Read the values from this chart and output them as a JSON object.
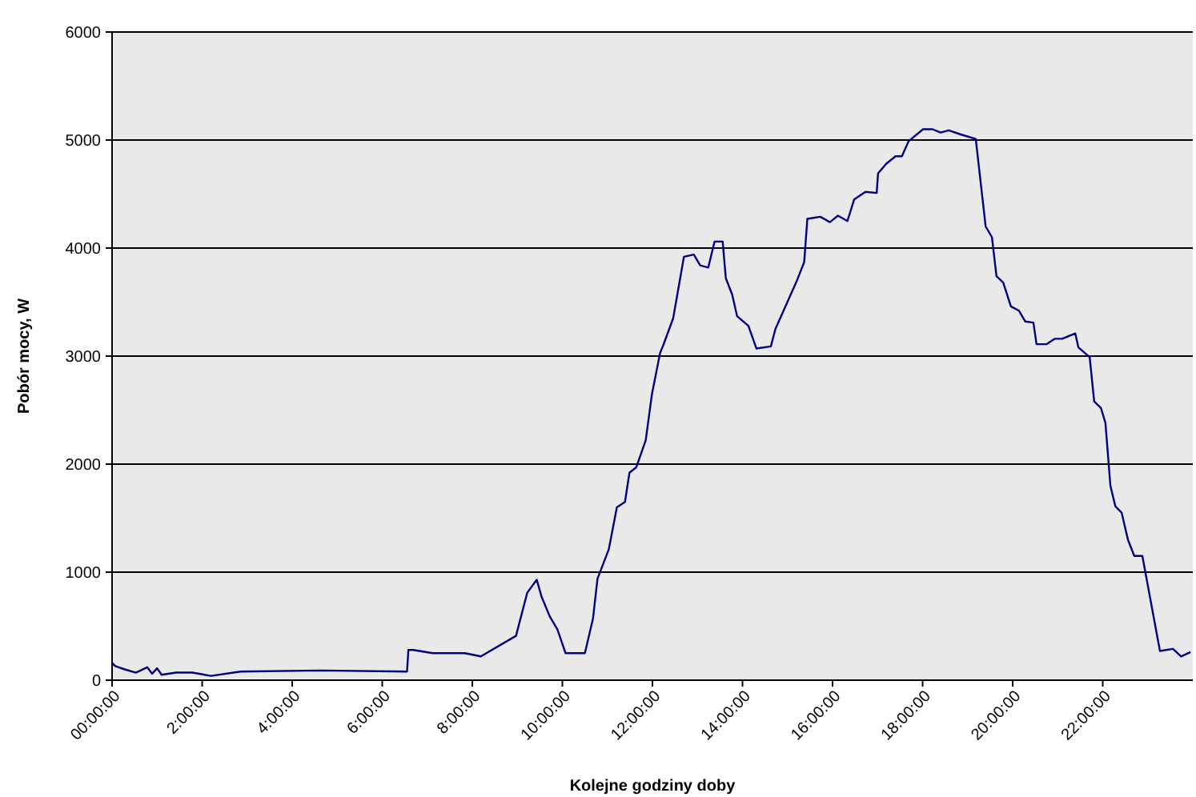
{
  "chart_data": {
    "type": "line",
    "xlabel": "Kolejne godziny doby",
    "ylabel": "Pobór mocy, W",
    "xlim": [
      0,
      24
    ],
    "xticks": [
      {
        "value": 0,
        "label": "00:00:00"
      },
      {
        "value": 2,
        "label": "2:00:00"
      },
      {
        "value": 4,
        "label": "4:00:00"
      },
      {
        "value": 6,
        "label": "6:00:00"
      },
      {
        "value": 8,
        "label": "8:00:00"
      },
      {
        "value": 10,
        "label": "10:00:00"
      },
      {
        "value": 12,
        "label": "12:00:00"
      },
      {
        "value": 14,
        "label": "14:00:00"
      },
      {
        "value": 16,
        "label": "16:00:00"
      },
      {
        "value": 18,
        "label": "18:00:00"
      },
      {
        "value": 20,
        "label": "20:00:00"
      },
      {
        "value": 22,
        "label": "22:00:00"
      }
    ],
    "ylim": [
      0,
      6000
    ],
    "yticks": [
      0,
      1000,
      2000,
      3000,
      4000,
      5000,
      6000
    ],
    "grid": "y",
    "marker": "none",
    "line_style": "solid",
    "series": [
      {
        "color": "#000080",
        "x": [
          0,
          0.07,
          0.28,
          0.53,
          0.78,
          0.89,
          1.0,
          1.1,
          1.42,
          1.78,
          2.2,
          2.85,
          4.63,
          6.55,
          6.58,
          6.69,
          7.12,
          7.83,
          8.19,
          8.97,
          9.22,
          9.43,
          9.54,
          9.72,
          9.89,
          10.07,
          10.5,
          10.68,
          10.78,
          11.03,
          11.21,
          11.39,
          11.49,
          11.64,
          11.85,
          11.99,
          12.17,
          12.24,
          12.46,
          12.7,
          12.92,
          13.06,
          13.24,
          13.38,
          13.56,
          13.63,
          13.77,
          13.88,
          14.13,
          14.31,
          14.63,
          14.73,
          15.05,
          15.2,
          15.37,
          15.44,
          15.73,
          15.94,
          16.12,
          16.33,
          16.48,
          16.73,
          16.98,
          17.01,
          17.19,
          17.4,
          17.54,
          17.69,
          18.01,
          18.22,
          18.4,
          18.58,
          18.86,
          19.18,
          19.4,
          19.54,
          19.64,
          19.79,
          19.96,
          20.14,
          20.28,
          20.46,
          20.53,
          20.75,
          20.93,
          21.1,
          21.39,
          21.46,
          21.71,
          21.81,
          21.96,
          22.06,
          22.17,
          22.28,
          22.42,
          22.56,
          22.7,
          22.88,
          23.27,
          23.56,
          23.74,
          23.95
        ],
        "values": [
          160,
          130,
          100,
          70,
          120,
          60,
          110,
          50,
          70,
          70,
          40,
          80,
          90,
          80,
          280,
          280,
          250,
          250,
          220,
          410,
          810,
          930,
          770,
          590,
          470,
          250,
          250,
          570,
          940,
          1210,
          1600,
          1650,
          1920,
          1970,
          2220,
          2650,
          3030,
          3100,
          3350,
          3920,
          3940,
          3840,
          3820,
          4060,
          4060,
          3720,
          3570,
          3370,
          3280,
          3070,
          3090,
          3250,
          3550,
          3690,
          3870,
          4270,
          4290,
          4240,
          4300,
          4250,
          4450,
          4520,
          4510,
          4690,
          4780,
          4850,
          4850,
          4990,
          5100,
          5100,
          5070,
          5090,
          5050,
          5010,
          4200,
          4100,
          3740,
          3680,
          3460,
          3420,
          3320,
          3310,
          3110,
          3110,
          3160,
          3160,
          3210,
          3080,
          2990,
          2580,
          2520,
          2380,
          1800,
          1610,
          1550,
          1300,
          1150,
          1150,
          270,
          290,
          220,
          260
        ]
      }
    ]
  }
}
